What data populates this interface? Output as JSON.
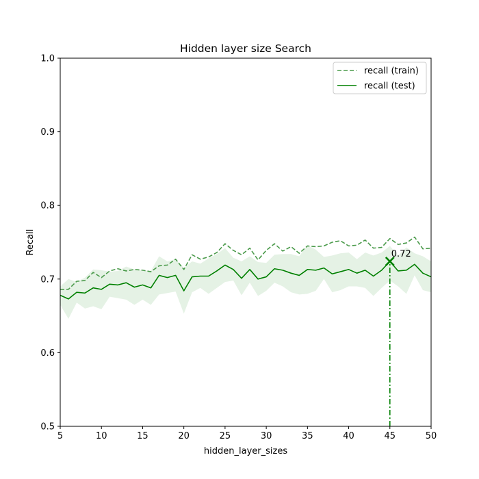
{
  "chart_data": {
    "type": "line",
    "title": "Hidden layer size Search",
    "xlabel": "hidden_layer_sizes",
    "ylabel": "Recall",
    "xlim": [
      5,
      50
    ],
    "ylim": [
      0.5,
      1.0
    ],
    "xticks": [
      5,
      10,
      15,
      20,
      25,
      30,
      35,
      40,
      45,
      50
    ],
    "yticks": [
      0.5,
      0.6,
      0.7,
      0.8,
      0.9,
      1.0
    ],
    "ytick_labels": [
      "0.5",
      "0.6",
      "0.7",
      "0.8",
      "0.9",
      "1.0"
    ],
    "grid": false,
    "legend_position": "upper right",
    "x": [
      5,
      6,
      7,
      8,
      9,
      10,
      11,
      12,
      13,
      14,
      15,
      16,
      17,
      18,
      19,
      20,
      21,
      22,
      23,
      24,
      25,
      26,
      27,
      28,
      29,
      30,
      31,
      32,
      33,
      34,
      35,
      36,
      37,
      38,
      39,
      40,
      41,
      42,
      43,
      44,
      45,
      46,
      47,
      48,
      49,
      50
    ],
    "series": [
      {
        "name": "recall (train)",
        "style": "dashed",
        "color": "#4a9a4a",
        "values": [
          0.686,
          0.686,
          0.697,
          0.698,
          0.709,
          0.702,
          0.711,
          0.714,
          0.711,
          0.713,
          0.712,
          0.71,
          0.718,
          0.719,
          0.727,
          0.713,
          0.733,
          0.727,
          0.73,
          0.736,
          0.748,
          0.739,
          0.733,
          0.742,
          0.726,
          0.739,
          0.748,
          0.738,
          0.744,
          0.735,
          0.745,
          0.744,
          0.745,
          0.75,
          0.752,
          0.745,
          0.746,
          0.753,
          0.742,
          0.743,
          0.755,
          0.747,
          0.749,
          0.757,
          0.741,
          0.742
        ]
      },
      {
        "name": "recall (test)",
        "style": "solid",
        "color": "#008000",
        "values": [
          0.678,
          0.673,
          0.682,
          0.681,
          0.688,
          0.686,
          0.693,
          0.692,
          0.695,
          0.689,
          0.692,
          0.688,
          0.705,
          0.702,
          0.705,
          0.684,
          0.703,
          0.704,
          0.704,
          0.711,
          0.719,
          0.713,
          0.701,
          0.713,
          0.7,
          0.703,
          0.714,
          0.712,
          0.708,
          0.705,
          0.713,
          0.712,
          0.715,
          0.707,
          0.71,
          0.713,
          0.708,
          0.712,
          0.704,
          0.712,
          0.724,
          0.711,
          0.712,
          0.72,
          0.708,
          0.703
        ],
        "band_lower": [
          0.665,
          0.646,
          0.668,
          0.66,
          0.663,
          0.659,
          0.676,
          0.674,
          0.672,
          0.665,
          0.672,
          0.665,
          0.679,
          0.681,
          0.683,
          0.653,
          0.682,
          0.688,
          0.68,
          0.688,
          0.696,
          0.698,
          0.678,
          0.695,
          0.677,
          0.684,
          0.695,
          0.69,
          0.682,
          0.679,
          0.68,
          0.684,
          0.7,
          0.682,
          0.685,
          0.69,
          0.69,
          0.688,
          0.677,
          0.688,
          0.698,
          0.69,
          0.68,
          0.705,
          0.685,
          0.682
        ],
        "band_upper": [
          0.69,
          0.7,
          0.696,
          0.702,
          0.713,
          0.712,
          0.71,
          0.711,
          0.717,
          0.713,
          0.712,
          0.711,
          0.731,
          0.724,
          0.727,
          0.715,
          0.724,
          0.721,
          0.728,
          0.734,
          0.742,
          0.729,
          0.724,
          0.731,
          0.723,
          0.722,
          0.733,
          0.734,
          0.734,
          0.731,
          0.746,
          0.74,
          0.73,
          0.732,
          0.735,
          0.736,
          0.727,
          0.736,
          0.732,
          0.736,
          0.745,
          0.732,
          0.743,
          0.735,
          0.731,
          0.724
        ]
      }
    ],
    "best_point": {
      "x": 45,
      "y": 0.724,
      "label": "0.72",
      "color": "#008000"
    }
  }
}
